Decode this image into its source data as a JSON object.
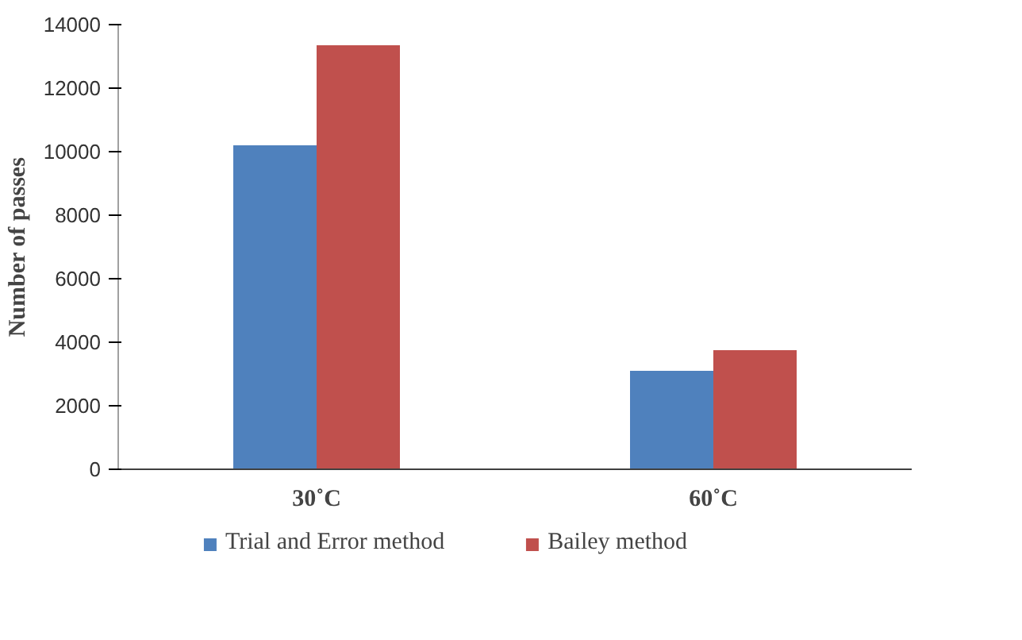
{
  "chart_data": {
    "type": "bar",
    "ylabel": "Number of passes",
    "categories": [
      "30˚C",
      "60˚C"
    ],
    "series": [
      {
        "name": "Trial and Error method",
        "color": "#4f81bd",
        "values": [
          10200,
          3100
        ]
      },
      {
        "name": "Bailey method",
        "color": "#c0504d",
        "values": [
          13350,
          3750
        ]
      }
    ],
    "ylim": [
      0,
      14000
    ],
    "yticks": [
      0,
      2000,
      4000,
      6000,
      8000,
      10000,
      12000,
      14000
    ],
    "grid": false,
    "legend": "bottom"
  }
}
